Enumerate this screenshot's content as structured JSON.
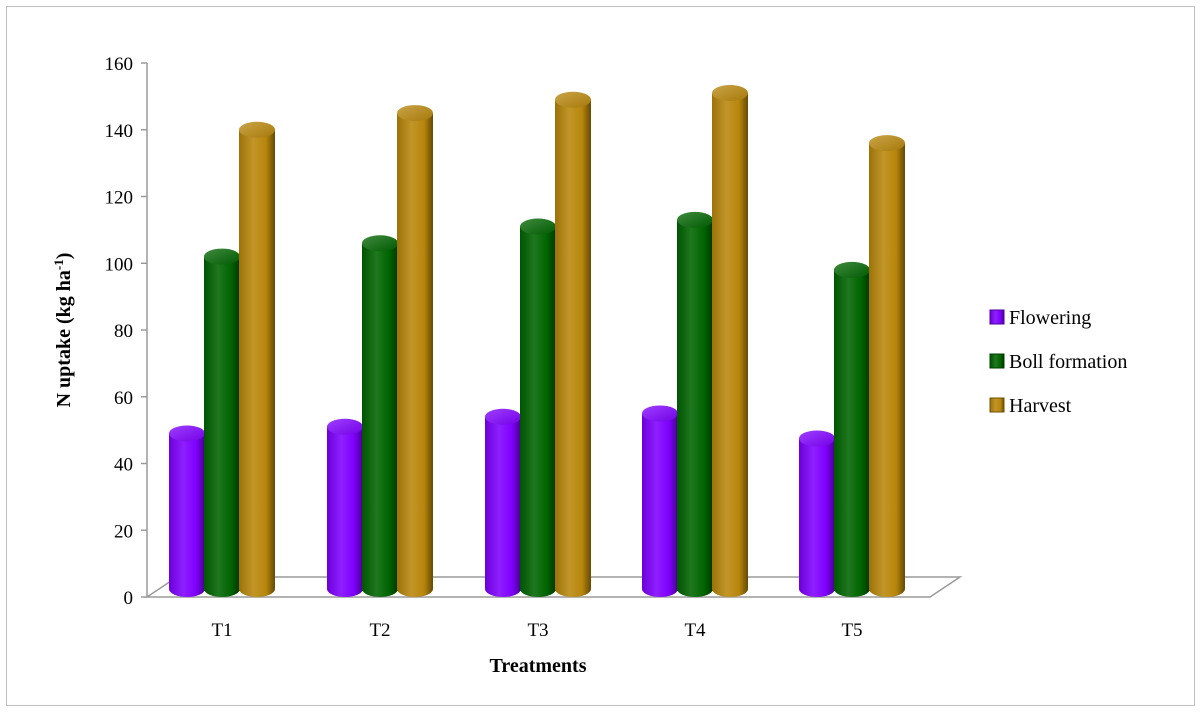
{
  "chart_data": {
    "type": "bar",
    "style": "3d-cylinder",
    "categories": [
      "T1",
      "T2",
      "T3",
      "T4",
      "T5"
    ],
    "series": [
      {
        "name": "Flowering",
        "color": "#7f00ff",
        "values": [
          49,
          51,
          54,
          55,
          47.5
        ]
      },
      {
        "name": "Boll formation",
        "color": "#006400",
        "values": [
          102,
          106,
          111,
          113,
          98
        ]
      },
      {
        "name": "Harvest",
        "color": "#b8860b",
        "values": [
          140,
          145,
          149,
          151,
          136
        ]
      }
    ],
    "xlabel": "Treatments",
    "ylabel_main": "N uptake (kg ha",
    "ylabel_sup": "-1",
    "ylabel_end": ")",
    "ylim": [
      0,
      160
    ],
    "yticks": [
      0,
      20,
      40,
      60,
      80,
      100,
      120,
      140,
      160
    ],
    "grid": false,
    "legend_position": "right"
  }
}
